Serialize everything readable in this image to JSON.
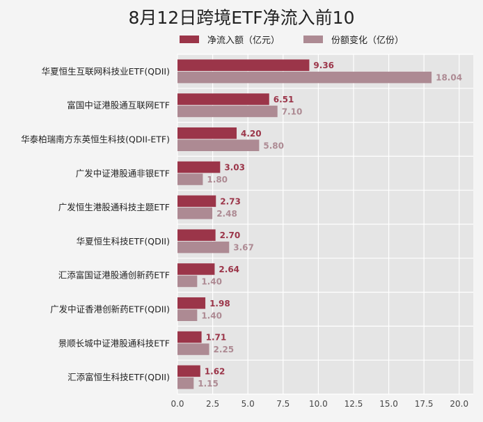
{
  "chart_data": {
    "type": "bar",
    "orientation": "horizontal",
    "title": "8月12日跨境ETF净流入前10",
    "categories": [
      "华夏恒生互联网科技业ETF(QDII)",
      "富国中证港股通互联网ETF",
      "华泰柏瑞南方东英恒生科技(QDII-ETF)",
      "广发中证港股通非银ETF",
      "广发恒生港股通科技主题ETF",
      "华夏恒生科技ETF(QDII)",
      "汇添富国证港股通创新药ETF",
      "广发中证香港创新药ETF(QDII)",
      "景顺长城中证港股通科技ETF",
      "汇添富恒生科技ETF(QDII)"
    ],
    "series": [
      {
        "name": "净流入额（亿元）",
        "color": "#9b3549",
        "values": [
          9.36,
          6.51,
          4.2,
          3.03,
          2.73,
          2.7,
          2.64,
          1.98,
          1.71,
          1.62
        ],
        "labels": [
          "9.36",
          "6.51",
          "4.20",
          "3.03",
          "2.73",
          "2.70",
          "2.64",
          "1.98",
          "1.71",
          "1.62"
        ]
      },
      {
        "name": "份额变化（亿份）",
        "color": "#ad8a93",
        "values": [
          18.04,
          7.1,
          5.8,
          1.8,
          2.48,
          3.67,
          1.4,
          1.4,
          2.25,
          1.15
        ],
        "labels": [
          "18.04",
          "7.10",
          "5.80",
          "1.80",
          "2.48",
          "3.67",
          "1.40",
          "1.40",
          "2.25",
          "1.15"
        ]
      }
    ],
    "xlim": [
      0,
      21
    ],
    "xticks": [
      "0.0",
      "2.5",
      "5.0",
      "7.5",
      "10.0",
      "12.5",
      "15.0",
      "17.5",
      "20.0"
    ],
    "grid": true,
    "legend_position": "top"
  }
}
